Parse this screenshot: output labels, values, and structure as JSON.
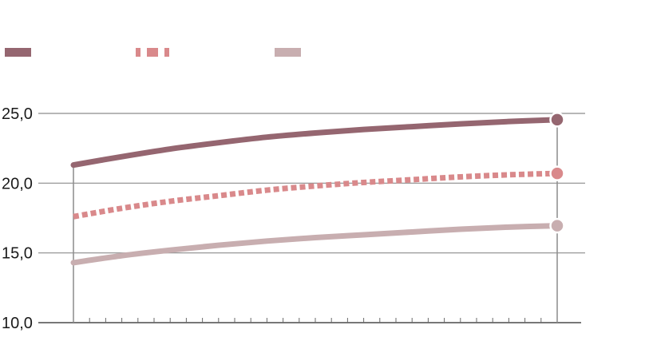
{
  "chart_data": {
    "type": "line",
    "title": "",
    "xlabel": "",
    "ylabel": "",
    "ylim": [
      10,
      25
    ],
    "y_ticks": [
      "10,0",
      "15,0",
      "20,0",
      "25,0"
    ],
    "x_tick_count": 31,
    "grid": "horizontal",
    "legend_placement": "top-left",
    "series": [
      {
        "color": "#956670",
        "style": "solid",
        "points": [
          [
            0,
            21.3
          ],
          [
            0.1,
            21.9
          ],
          [
            0.2,
            22.45
          ],
          [
            0.3,
            22.9
          ],
          [
            0.4,
            23.3
          ],
          [
            0.5,
            23.6
          ],
          [
            0.6,
            23.85
          ],
          [
            0.7,
            24.05
          ],
          [
            0.8,
            24.25
          ],
          [
            0.9,
            24.42
          ],
          [
            1.0,
            24.55
          ]
        ]
      },
      {
        "color": "#d9898b",
        "style": "dotted",
        "points": [
          [
            0,
            17.6
          ],
          [
            0.1,
            18.2
          ],
          [
            0.2,
            18.7
          ],
          [
            0.3,
            19.1
          ],
          [
            0.4,
            19.5
          ],
          [
            0.5,
            19.8
          ],
          [
            0.6,
            20.05
          ],
          [
            0.7,
            20.25
          ],
          [
            0.8,
            20.45
          ],
          [
            0.9,
            20.6
          ],
          [
            1.0,
            20.7
          ]
        ]
      },
      {
        "color": "#c8aeb0",
        "style": "solid",
        "points": [
          [
            0,
            14.3
          ],
          [
            0.1,
            14.8
          ],
          [
            0.2,
            15.2
          ],
          [
            0.3,
            15.55
          ],
          [
            0.4,
            15.85
          ],
          [
            0.5,
            16.1
          ],
          [
            0.6,
            16.3
          ],
          [
            0.7,
            16.5
          ],
          [
            0.8,
            16.7
          ],
          [
            0.9,
            16.85
          ],
          [
            1.0,
            16.95
          ]
        ]
      }
    ]
  }
}
